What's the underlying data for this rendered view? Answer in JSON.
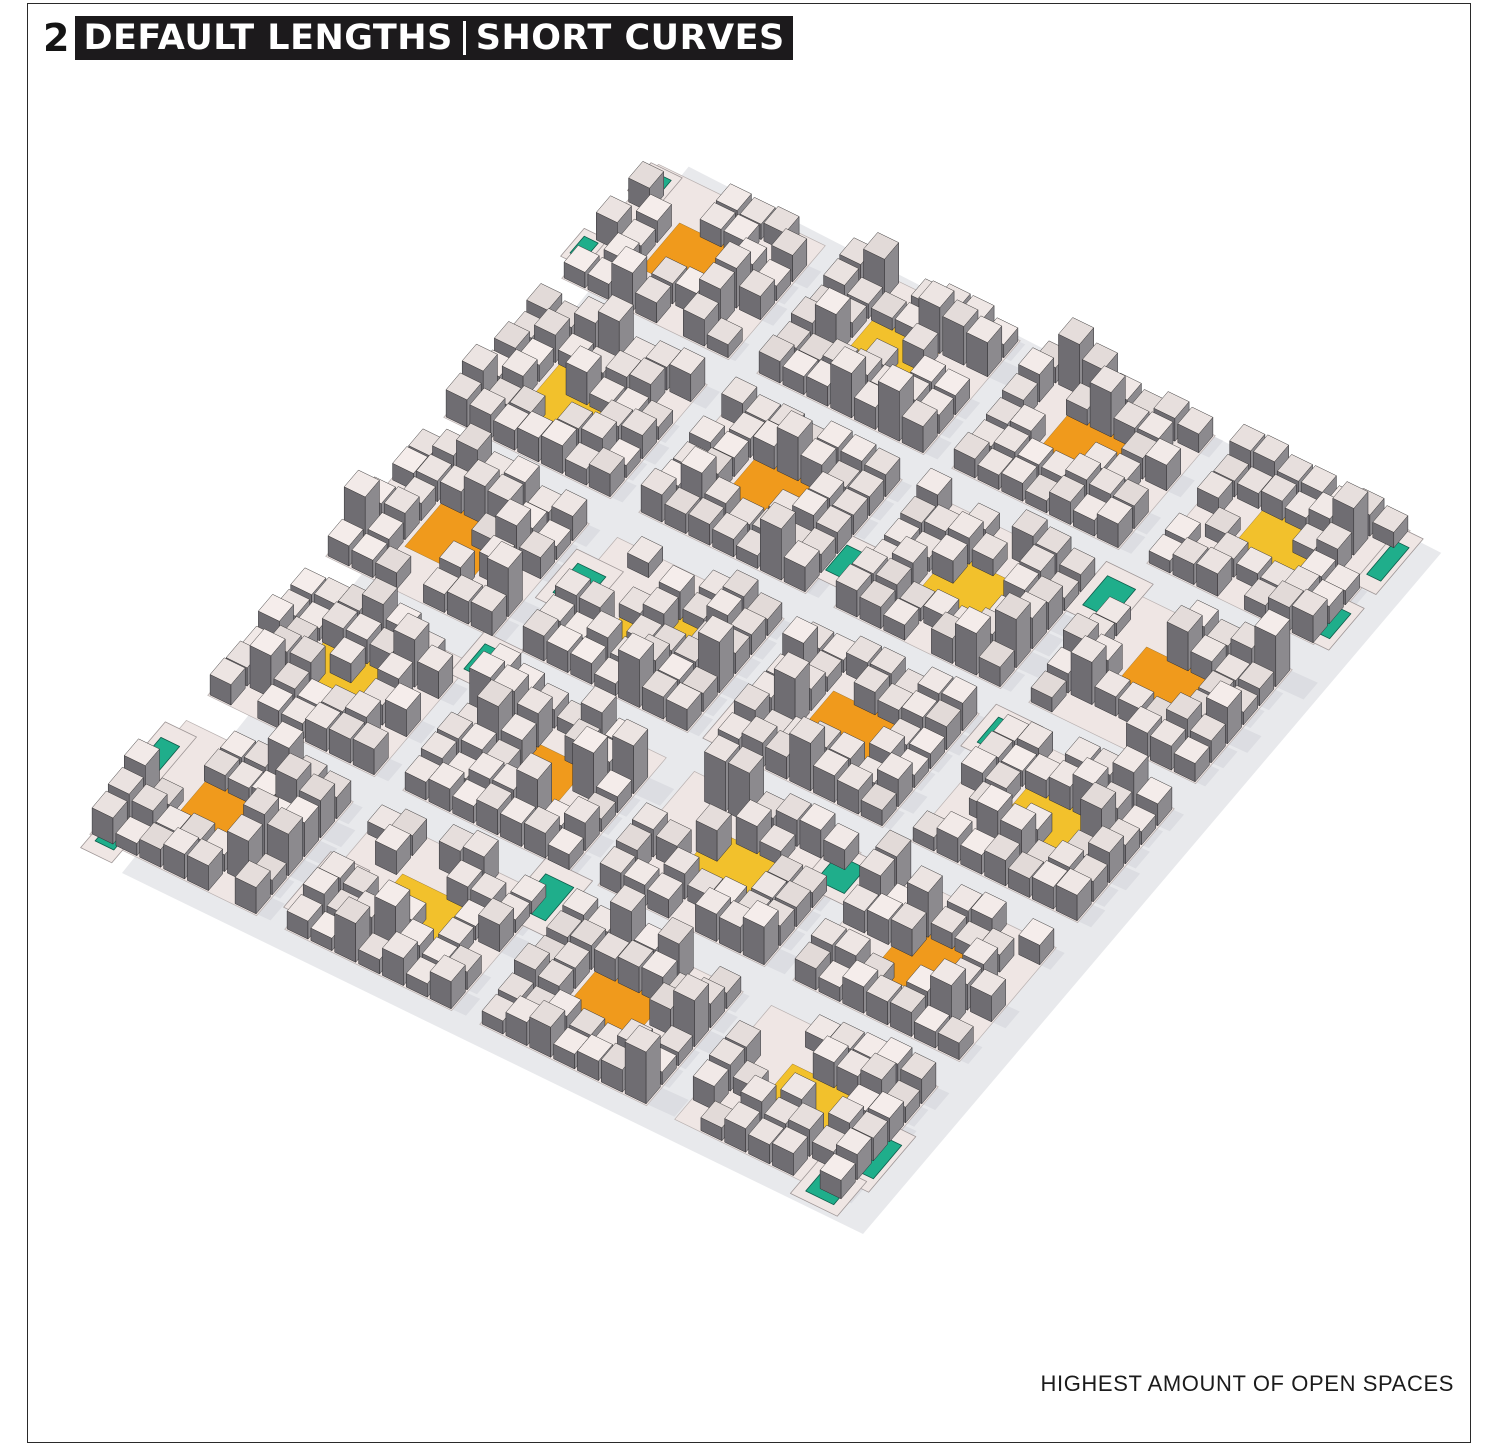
{
  "figure": {
    "number": "2",
    "title_left": "DEFAULT LENGTHS",
    "title_right": "SHORT CURVES",
    "caption": "HIGHEST AMOUNT OF OPEN SPACES"
  },
  "legend_colors": {
    "building_top": "#ece3e0",
    "building_side": "#8c8a8e",
    "open_space_green": "#1fae8b",
    "courtyard_yellow": "#f2c12c",
    "courtyard_orange": "#f09a1c",
    "plot_base": "#efe6e4"
  },
  "content": {
    "diagram_kind": "isometric urban massing model",
    "block_grid": "columns and rows of city blocks separated by streets",
    "icons": [
      "green-park-plot",
      "yellow-courtyard",
      "orange-courtyard",
      "building-massing"
    ]
  }
}
